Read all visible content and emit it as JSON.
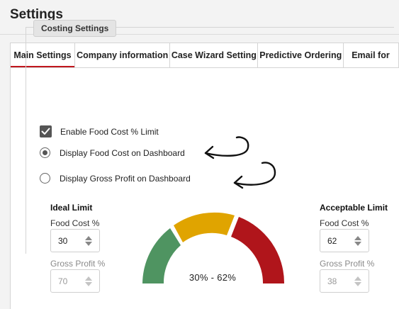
{
  "header": {
    "title": "Settings"
  },
  "tabs": [
    {
      "label": "Main Settings",
      "active": true
    },
    {
      "label": "Company information",
      "active": false
    },
    {
      "label": "Case Wizard Setting",
      "active": false
    },
    {
      "label": "Predictive Ordering",
      "active": false
    },
    {
      "label": "Email for",
      "active": false
    }
  ],
  "costing": {
    "legend": "Costing Settings",
    "enable_food_cost_limit": {
      "label": "Enable Food Cost % Limit",
      "checked": true,
      "icon": "checkmark-icon"
    },
    "display_food_cost": {
      "label": "Display Food Cost on Dashboard",
      "selected": true
    },
    "display_gross_profit": {
      "label": "Display Gross Profit on Dashboard",
      "selected": false
    }
  },
  "ideal_limit": {
    "title": "Ideal Limit",
    "food_cost_label": "Food Cost %",
    "food_cost_value": "30",
    "gross_profit_label": "Gross Profit %",
    "gross_profit_value": "70"
  },
  "acceptable_limit": {
    "title": "Acceptable Limit",
    "food_cost_label": "Food Cost %",
    "food_cost_value": "62",
    "gross_profit_label": "Gross Profit %",
    "gross_profit_value": "38"
  },
  "gauge": {
    "label": "30% - 62%",
    "colors": {
      "green": "#4f9461",
      "yellow": "#e0a400",
      "red": "#b0151b"
    }
  },
  "colors": {
    "accent": "#c0161d"
  }
}
